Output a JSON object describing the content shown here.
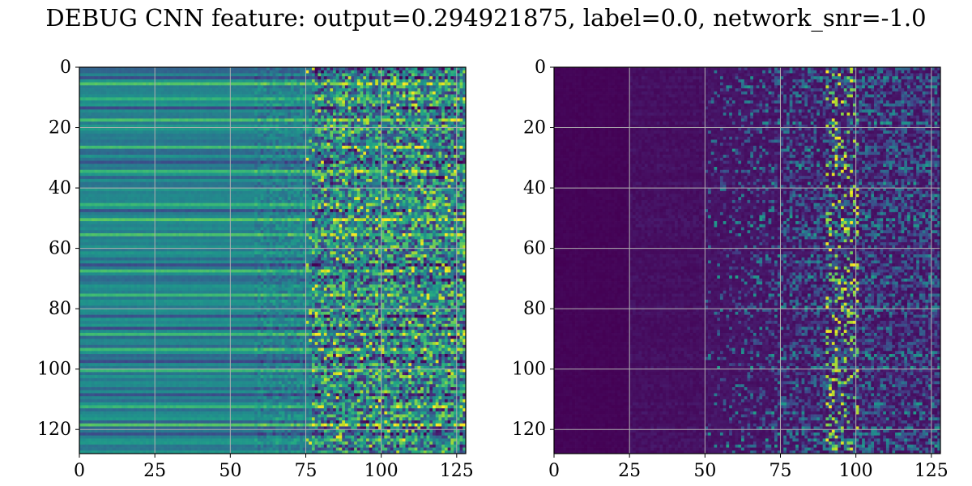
{
  "figure": {
    "title": "DEBUG CNN feature: output=0.294921875, label=0.0, network_snr=-1.0"
  },
  "chart_data": [
    {
      "type": "heatmap",
      "panel": "left",
      "colormap": "viridis",
      "xlim": [
        0,
        128
      ],
      "ylim": [
        128,
        0
      ],
      "rows": 128,
      "cols": 128,
      "x_ticks": [
        0,
        25,
        50,
        75,
        100,
        125
      ],
      "y_ticks": [
        0,
        20,
        40,
        60,
        80,
        100,
        120
      ],
      "x_tick_labels": [
        "0",
        "25",
        "50",
        "75",
        "100",
        "125"
      ],
      "y_tick_labels": [
        "0",
        "20",
        "40",
        "60",
        "80",
        "100",
        "120"
      ],
      "grid": true,
      "description_values": {
        "style": "horizontal banded rows, smooth on left, increasingly noisy toward right",
        "bright_rows": [
          5,
          10,
          17,
          26,
          34,
          45,
          50,
          55,
          67,
          75,
          88,
          93,
          100,
          112,
          118
        ],
        "dark_rows": [
          3,
          13,
          31,
          47,
          65,
          82,
          86,
          97,
          108,
          121
        ]
      }
    },
    {
      "type": "heatmap",
      "panel": "right",
      "colormap": "viridis",
      "xlim": [
        0,
        128
      ],
      "ylim": [
        128,
        0
      ],
      "rows": 128,
      "cols": 128,
      "x_ticks": [
        0,
        25,
        50,
        75,
        100,
        125
      ],
      "y_ticks": [
        0,
        20,
        40,
        60,
        80,
        100,
        120
      ],
      "x_tick_labels": [
        "0",
        "25",
        "50",
        "75",
        "100",
        "125"
      ],
      "y_tick_labels": [
        "0",
        "20",
        "40",
        "60",
        "80",
        "100",
        "120"
      ],
      "grid": true,
      "description_values": {
        "style": "mostly dark purple (low) on left, sparse bright speckles from column ~50 onward, brightest near columns 90-100",
        "hot_columns": [
          90,
          100
        ]
      }
    }
  ]
}
